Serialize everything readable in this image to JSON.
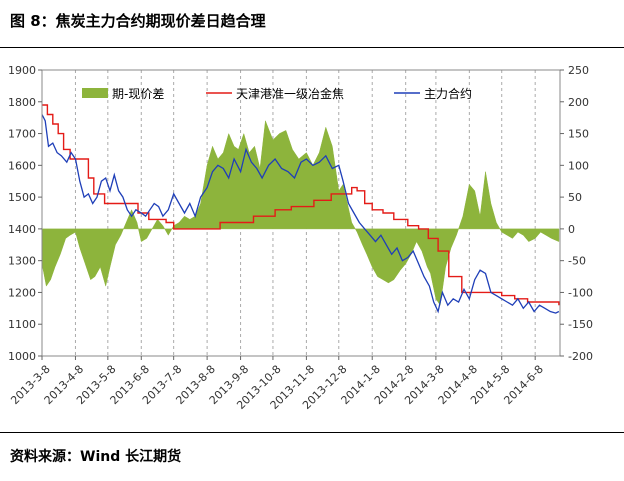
{
  "figure_title": "图 8：焦炭主力合约期现价差日趋合理",
  "source": "资料来源：Wind 长江期货",
  "colors": {
    "basis": "#8DB43C",
    "spot": "#E41B17",
    "futures": "#1F3FB8"
  },
  "chart_data": {
    "type": "line",
    "title": "",
    "legend": [
      "期-现价差",
      "天津港准一级冶金焦",
      "主力合约"
    ],
    "legend_position": "top",
    "grid": "vertical dashed",
    "x_tick_labels": [
      "2013-3-8",
      "2013-4-8",
      "2013-5-8",
      "2013-6-8",
      "2013-7-8",
      "2013-8-8",
      "2013-9-8",
      "2013-10-8",
      "2013-11-8",
      "2013-12-8",
      "2014-1-8",
      "2014-2-8",
      "2014-3-8",
      "2014-4-8",
      "2014-5-8",
      "2014-6-8"
    ],
    "x_range": [
      "2013-3-8",
      "2014-7-1"
    ],
    "left_axis": {
      "range": [
        1000,
        1900
      ],
      "ticks": [
        1000,
        1100,
        1200,
        1300,
        1400,
        1500,
        1600,
        1700,
        1800,
        1900
      ]
    },
    "right_axis": {
      "range": [
        -200,
        250
      ],
      "ticks": [
        -200,
        -150,
        -100,
        -50,
        0,
        50,
        100,
        150,
        200,
        250
      ]
    },
    "series": [
      {
        "name": "期-现价差",
        "type": "area",
        "axis": "right",
        "x": [
          "2013-3-8",
          "2013-3-12",
          "2013-3-16",
          "2013-3-20",
          "2013-3-25",
          "2013-3-30",
          "2013-4-3",
          "2013-4-8",
          "2013-4-12",
          "2013-4-17",
          "2013-4-22",
          "2013-4-26",
          "2013-5-1",
          "2013-5-6",
          "2013-5-10",
          "2013-5-15",
          "2013-5-20",
          "2013-5-25",
          "2013-5-30",
          "2013-6-4",
          "2013-6-8",
          "2013-6-13",
          "2013-6-18",
          "2013-6-23",
          "2013-6-28",
          "2013-7-3",
          "2013-7-8",
          "2013-7-13",
          "2013-7-18",
          "2013-7-23",
          "2013-7-28",
          "2013-8-2",
          "2013-8-8",
          "2013-8-13",
          "2013-8-18",
          "2013-8-23",
          "2013-8-28",
          "2013-9-2",
          "2013-9-6",
          "2013-9-11",
          "2013-9-16",
          "2013-9-21",
          "2013-9-26",
          "2013-10-1",
          "2013-10-8",
          "2013-10-14",
          "2013-10-20",
          "2013-10-26",
          "2013-11-1",
          "2013-11-8",
          "2013-11-14",
          "2013-11-20",
          "2013-11-26",
          "2013-12-2",
          "2013-12-8",
          "2013-12-12",
          "2013-12-16",
          "2013-12-20",
          "2013-12-25",
          "2013-12-30",
          "2014-1-3",
          "2014-1-8",
          "2014-1-13",
          "2014-1-18",
          "2014-1-23",
          "2014-1-28",
          "2014-2-3",
          "2014-2-8",
          "2014-2-13",
          "2014-2-18",
          "2014-2-23",
          "2014-2-28",
          "2014-3-3",
          "2014-3-8",
          "2014-3-12",
          "2014-3-17",
          "2014-3-22",
          "2014-3-27",
          "2014-4-2",
          "2014-4-8",
          "2014-4-13",
          "2014-4-18",
          "2014-4-23",
          "2014-4-28",
          "2014-5-3",
          "2014-5-8",
          "2014-5-13",
          "2014-5-18",
          "2014-5-23",
          "2014-5-28",
          "2014-6-2",
          "2014-6-8",
          "2014-6-13",
          "2014-6-18",
          "2014-6-23",
          "2014-6-30"
        ],
        "values": [
          -55,
          -90,
          -80,
          -60,
          -40,
          -15,
          -10,
          -5,
          -30,
          -55,
          -80,
          -75,
          -60,
          -90,
          -60,
          -25,
          -10,
          10,
          30,
          10,
          -20,
          -15,
          0,
          15,
          5,
          -10,
          5,
          10,
          20,
          15,
          20,
          40,
          100,
          130,
          110,
          120,
          150,
          130,
          125,
          150,
          120,
          130,
          95,
          170,
          140,
          150,
          155,
          125,
          110,
          120,
          100,
          120,
          160,
          130,
          60,
          70,
          40,
          10,
          -5,
          -25,
          -40,
          -60,
          -75,
          -80,
          -85,
          -80,
          -65,
          -55,
          -40,
          -20,
          -35,
          -60,
          -70,
          -110,
          -120,
          -60,
          -30,
          -10,
          20,
          70,
          60,
          20,
          90,
          40,
          10,
          -5,
          -10,
          -15,
          -5,
          -10,
          -20,
          -15,
          -5,
          -10,
          -15,
          -20
        ]
      },
      {
        "name": "天津港准一级冶金焦",
        "type": "step",
        "axis": "left",
        "x": [
          "2013-3-8",
          "2013-3-13",
          "2013-3-18",
          "2013-3-23",
          "2013-3-28",
          "2013-4-3",
          "2013-4-20",
          "2013-4-25",
          "2013-5-5",
          "2013-6-5",
          "2013-6-15",
          "2013-7-1",
          "2013-7-8",
          "2013-8-8",
          "2013-8-20",
          "2013-9-5",
          "2013-9-20",
          "2013-10-10",
          "2013-10-25",
          "2013-11-15",
          "2013-12-1",
          "2013-12-20",
          "2013-12-25",
          "2014-1-1",
          "2014-1-8",
          "2014-1-18",
          "2014-1-28",
          "2014-2-10",
          "2014-2-20",
          "2014-3-1",
          "2014-3-10",
          "2014-3-20",
          "2014-4-1",
          "2014-5-8",
          "2014-5-20",
          "2014-6-1",
          "2014-6-30"
        ],
        "values": [
          1790,
          1760,
          1730,
          1700,
          1650,
          1620,
          1560,
          1510,
          1480,
          1450,
          1430,
          1420,
          1400,
          1400,
          1420,
          1420,
          1440,
          1460,
          1470,
          1490,
          1510,
          1530,
          1520,
          1480,
          1460,
          1450,
          1430,
          1410,
          1400,
          1370,
          1330,
          1250,
          1200,
          1190,
          1180,
          1170,
          1160
        ]
      },
      {
        "name": "主力合约",
        "type": "line",
        "axis": "left",
        "x": [
          "2013-3-8",
          "2013-3-11",
          "2013-3-14",
          "2013-3-18",
          "2013-3-22",
          "2013-3-26",
          "2013-3-31",
          "2013-4-4",
          "2013-4-8",
          "2013-4-12",
          "2013-4-16",
          "2013-4-20",
          "2013-4-24",
          "2013-4-28",
          "2013-5-2",
          "2013-5-6",
          "2013-5-10",
          "2013-5-14",
          "2013-5-18",
          "2013-5-22",
          "2013-5-26",
          "2013-5-30",
          "2013-6-3",
          "2013-6-8",
          "2013-6-12",
          "2013-6-16",
          "2013-6-20",
          "2013-6-24",
          "2013-6-28",
          "2013-7-3",
          "2013-7-8",
          "2013-7-13",
          "2013-7-18",
          "2013-7-23",
          "2013-7-28",
          "2013-8-2",
          "2013-8-8",
          "2013-8-13",
          "2013-8-18",
          "2013-8-23",
          "2013-8-28",
          "2013-9-2",
          "2013-9-8",
          "2013-9-13",
          "2013-9-18",
          "2013-9-23",
          "2013-9-28",
          "2013-10-4",
          "2013-10-10",
          "2013-10-16",
          "2013-10-22",
          "2013-10-28",
          "2013-11-3",
          "2013-11-8",
          "2013-11-14",
          "2013-11-20",
          "2013-11-26",
          "2013-12-2",
          "2013-12-8",
          "2013-12-12",
          "2013-12-17",
          "2013-12-22",
          "2013-12-27",
          "2014-1-1",
          "2014-1-6",
          "2014-1-11",
          "2014-1-16",
          "2014-1-21",
          "2014-1-26",
          "2014-1-31",
          "2014-2-5",
          "2014-2-10",
          "2014-2-15",
          "2014-2-20",
          "2014-2-25",
          "2014-3-2",
          "2014-3-6",
          "2014-3-10",
          "2014-3-14",
          "2014-3-19",
          "2014-3-24",
          "2014-3-29",
          "2014-4-3",
          "2014-4-8",
          "2014-4-13",
          "2014-4-18",
          "2014-4-23",
          "2014-4-28",
          "2014-5-3",
          "2014-5-8",
          "2014-5-13",
          "2014-5-18",
          "2014-5-23",
          "2014-5-28",
          "2014-6-2",
          "2014-6-7",
          "2014-6-12",
          "2014-6-17",
          "2014-6-22",
          "2014-6-27",
          "2014-6-30"
        ],
        "values": [
          1760,
          1740,
          1660,
          1670,
          1640,
          1630,
          1610,
          1640,
          1620,
          1550,
          1500,
          1510,
          1480,
          1500,
          1550,
          1560,
          1520,
          1570,
          1520,
          1500,
          1460,
          1440,
          1460,
          1450,
          1440,
          1460,
          1480,
          1470,
          1440,
          1460,
          1510,
          1480,
          1450,
          1480,
          1440,
          1500,
          1530,
          1580,
          1600,
          1590,
          1560,
          1620,
          1580,
          1650,
          1610,
          1590,
          1560,
          1600,
          1620,
          1590,
          1580,
          1560,
          1610,
          1620,
          1600,
          1610,
          1630,
          1590,
          1600,
          1550,
          1480,
          1450,
          1420,
          1400,
          1380,
          1360,
          1380,
          1350,
          1320,
          1340,
          1300,
          1310,
          1330,
          1290,
          1250,
          1220,
          1170,
          1140,
          1200,
          1160,
          1180,
          1170,
          1210,
          1180,
          1240,
          1270,
          1260,
          1200,
          1190,
          1180,
          1170,
          1160,
          1180,
          1150,
          1170,
          1140,
          1160,
          1150,
          1140,
          1135,
          1140
        ]
      }
    ]
  }
}
